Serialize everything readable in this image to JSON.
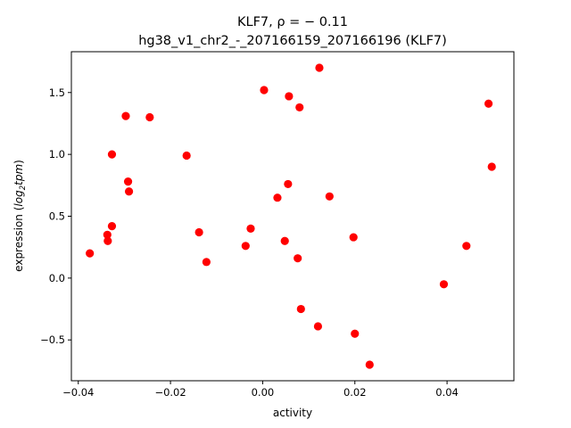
{
  "chart_data": {
    "type": "scatter",
    "title_line1": "KLF7, ρ = − 0.11",
    "title_line2": "hg38_v1_chr2_-_207166159_207166196 (KLF7)",
    "xlabel": "activity",
    "ylabel_prefix": "expression (",
    "ylabel_math": "log",
    "ylabel_sub": "2",
    "ylabel_math2": "tpm",
    "ylabel_suffix": ")",
    "xlim": [
      -0.0415,
      0.0545
    ],
    "ylim": [
      -0.83,
      1.83
    ],
    "xticks": [
      -0.04,
      -0.02,
      0.0,
      0.02,
      0.04
    ],
    "xtick_labels": [
      "−0.04",
      "−0.02",
      "0.00",
      "0.02",
      "0.04"
    ],
    "yticks": [
      -0.5,
      0.0,
      0.5,
      1.0,
      1.5
    ],
    "ytick_labels": [
      "−0.5",
      "0.0",
      "0.5",
      "1.0",
      "1.5"
    ],
    "marker_color": "#ff0000",
    "grid": false,
    "points": [
      {
        "x": -0.0375,
        "y": 0.2
      },
      {
        "x": -0.0337,
        "y": 0.35
      },
      {
        "x": -0.0336,
        "y": 0.3
      },
      {
        "x": -0.0327,
        "y": 0.42
      },
      {
        "x": -0.0327,
        "y": 1.0
      },
      {
        "x": -0.0297,
        "y": 1.31
      },
      {
        "x": -0.0292,
        "y": 0.78
      },
      {
        "x": -0.029,
        "y": 0.7
      },
      {
        "x": -0.0245,
        "y": 1.3
      },
      {
        "x": -0.0165,
        "y": 0.99
      },
      {
        "x": -0.0138,
        "y": 0.37
      },
      {
        "x": -0.0122,
        "y": 0.13
      },
      {
        "x": -0.0037,
        "y": 0.26
      },
      {
        "x": -0.0026,
        "y": 0.4
      },
      {
        "x": 0.0003,
        "y": 1.52
      },
      {
        "x": 0.0032,
        "y": 0.65
      },
      {
        "x": 0.0048,
        "y": 0.3
      },
      {
        "x": 0.0055,
        "y": 0.76
      },
      {
        "x": 0.0057,
        "y": 1.47
      },
      {
        "x": 0.0076,
        "y": 0.16
      },
      {
        "x": 0.008,
        "y": 1.38
      },
      {
        "x": 0.0083,
        "y": -0.25
      },
      {
        "x": 0.012,
        "y": -0.39
      },
      {
        "x": 0.0123,
        "y": 1.7
      },
      {
        "x": 0.0145,
        "y": 0.66
      },
      {
        "x": 0.0197,
        "y": 0.33
      },
      {
        "x": 0.02,
        "y": -0.45
      },
      {
        "x": 0.0232,
        "y": -0.7
      },
      {
        "x": 0.0393,
        "y": -0.05
      },
      {
        "x": 0.0442,
        "y": 0.26
      },
      {
        "x": 0.049,
        "y": 1.41
      },
      {
        "x": 0.0497,
        "y": 0.9
      }
    ]
  }
}
